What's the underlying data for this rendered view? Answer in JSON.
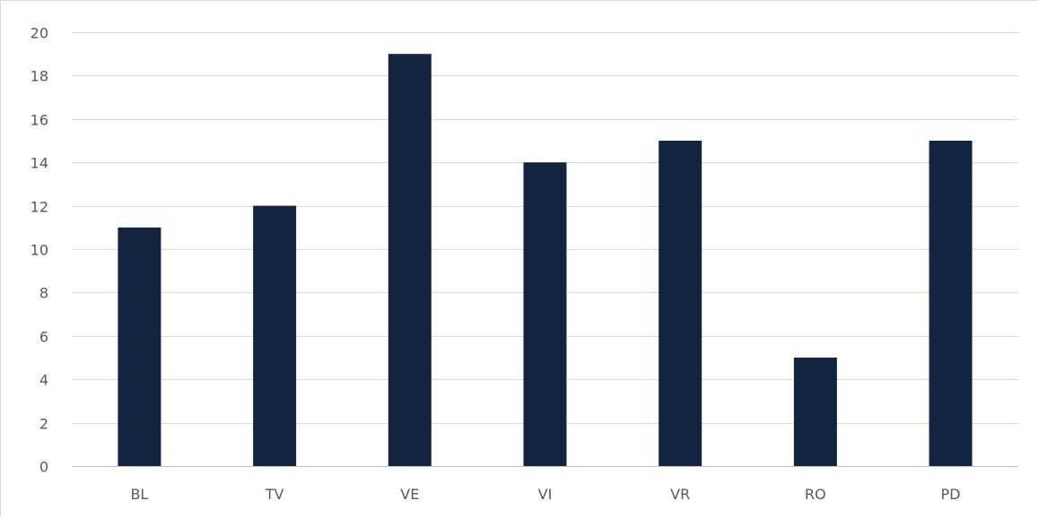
{
  "chart_data": {
    "type": "bar",
    "title": "",
    "xlabel": "",
    "ylabel": "",
    "categories": [
      "BL",
      "TV",
      "VE",
      "VI",
      "VR",
      "RO",
      "PD"
    ],
    "values": [
      11,
      12,
      19,
      14,
      15,
      5,
      15
    ],
    "ylim": [
      0,
      20
    ],
    "yticks": [
      0,
      2,
      4,
      6,
      8,
      10,
      12,
      14,
      16,
      18,
      20
    ],
    "grid": true,
    "legend": "none",
    "bar_color": "#12243f",
    "grid_color": "#d9d9d9",
    "tick_label_color": "#595959"
  }
}
